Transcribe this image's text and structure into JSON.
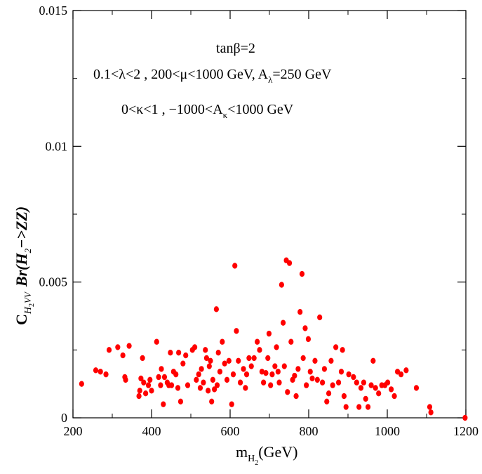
{
  "chart_data": {
    "type": "scatter",
    "xlabel": {
      "main": "m",
      "sub_main": "H",
      "sub_sub": "2",
      "unit": "(GeV)"
    },
    "ylabel": {
      "c": "C",
      "sub_h": "H",
      "sub_2": "2",
      "sub_vv": "VV",
      "br": "Br(H",
      "br_sub": "2",
      "br_tail": "−>ZZ)"
    },
    "xlim": [
      200,
      1200
    ],
    "ylim": [
      0,
      0.015
    ],
    "x_ticks": [
      200,
      400,
      600,
      800,
      1000,
      1200
    ],
    "x_tick_labels": [
      "200",
      "400",
      "600",
      "800",
      "1000",
      "1200"
    ],
    "y_ticks": [
      0,
      0.005,
      0.01,
      0.015
    ],
    "y_tick_labels": [
      "0",
      "0.005",
      "0.01",
      "0.015"
    ],
    "marker_color": "#ff0000",
    "grid": false,
    "annotations": {
      "line1": "tanβ=2",
      "line2_a": "0.1<λ<2 , 200<μ<1000 GeV, A",
      "line2_sub": "λ",
      "line2_b": "=250 GeV",
      "line3_a": "0<κ<1 , −1000<A",
      "line3_sub": "κ",
      "line3_b": "<1000 GeV"
    },
    "x": [
      222,
      258,
      270,
      284,
      292,
      314,
      327,
      332,
      334,
      343,
      368,
      370,
      373,
      377,
      380,
      385,
      392,
      396,
      400,
      413,
      418,
      423,
      425,
      430,
      433,
      440,
      444,
      448,
      451,
      456,
      462,
      467,
      469,
      474,
      480,
      487,
      492,
      504,
      510,
      514,
      520,
      524,
      527,
      532,
      537,
      540,
      544,
      547,
      550,
      553,
      556,
      560,
      565,
      567,
      570,
      574,
      580,
      586,
      592,
      597,
      604,
      608,
      612,
      616,
      621,
      626,
      634,
      639,
      642,
      648,
      654,
      661,
      669,
      675,
      681,
      685,
      691,
      696,
      699,
      703,
      707,
      714,
      718,
      722,
      725,
      731,
      735,
      738,
      743,
      746,
      751,
      755,
      759,
      764,
      768,
      773,
      778,
      783,
      786,
      791,
      794,
      799,
      804,
      809,
      816,
      822,
      828,
      835,
      840,
      846,
      851,
      857,
      861,
      869,
      876,
      883,
      886,
      890,
      895,
      902,
      914,
      922,
      928,
      933,
      940,
      945,
      951,
      959,
      964,
      970,
      978,
      986,
      994,
      1001,
      1010,
      1018,
      1026,
      1035,
      1048,
      1074,
      1108,
      1111,
      1198
    ],
    "y": [
      0.00125,
      0.00175,
      0.0017,
      0.0016,
      0.0025,
      0.0026,
      0.0023,
      0.0015,
      0.0014,
      0.00265,
      0.0008,
      0.001,
      0.00145,
      0.0022,
      0.0013,
      0.0009,
      0.0012,
      0.0014,
      0.001,
      0.0028,
      0.0015,
      0.0012,
      0.0018,
      0.0005,
      0.0015,
      0.0013,
      0.0012,
      0.0024,
      0.0012,
      0.0017,
      0.0016,
      0.0011,
      0.0024,
      0.0006,
      0.002,
      0.0023,
      0.0012,
      0.0025,
      0.0026,
      0.0014,
      0.0016,
      0.0011,
      0.0018,
      0.0013,
      0.0025,
      0.0022,
      0.001,
      0.0019,
      0.0021,
      0.0006,
      0.0014,
      0.00105,
      0.004,
      0.0012,
      0.0024,
      0.0017,
      0.0028,
      0.002,
      0.0014,
      0.0021,
      0.0005,
      0.0016,
      0.0056,
      0.0032,
      0.0021,
      0.0013,
      0.0018,
      0.0011,
      0.0016,
      0.0022,
      0.0019,
      0.0022,
      0.0028,
      0.0025,
      0.0017,
      0.0013,
      0.00165,
      0.0022,
      0.0031,
      0.0012,
      0.0016,
      0.0019,
      0.0026,
      0.0017,
      0.0013,
      0.0049,
      0.0035,
      0.0019,
      0.0058,
      0.00095,
      0.0057,
      0.0028,
      0.0014,
      0.00155,
      0.0008,
      0.0018,
      0.0039,
      0.0053,
      0.0022,
      0.0033,
      0.0012,
      0.0029,
      0.0017,
      0.00145,
      0.0021,
      0.0014,
      0.0037,
      0.0013,
      0.0018,
      0.0006,
      0.0009,
      0.0021,
      0.0012,
      0.0026,
      0.0013,
      0.0017,
      0.0025,
      0.0008,
      0.0004,
      0.0016,
      0.0015,
      0.0013,
      0.0004,
      0.0011,
      0.0013,
      0.0007,
      0.0004,
      0.0012,
      0.0021,
      0.0011,
      0.0009,
      0.0012,
      0.0012,
      0.0013,
      0.00105,
      0.0008,
      0.0017,
      0.0016,
      0.00175,
      0.0011,
      0.0004,
      0.0002,
      0.0
    ]
  }
}
